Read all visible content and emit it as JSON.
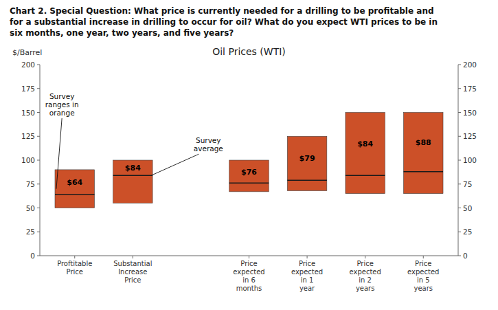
{
  "chart_data": {
    "type": "bar",
    "title": "Oil Prices (WTI)",
    "subtitle": "Chart 2. Special Question: What price is currently needed for a drilling to be profitable and\nfor a substantial increase in drilling to occur for oil? What do you expect WTI prices to be in\nsix months, one year, two years, and five years?",
    "y_label": "$/Barrel",
    "categories": [
      "Proftitable\nPrice",
      "Substantial\nIncrease\nPrice",
      null,
      "Price\nexpected\nin 6\nmonths",
      "Price\nexpected\nin 1\nyear",
      "Price\nexpected\nin 2\nyears",
      "Price\nexpected\nin 5\nyears"
    ],
    "lows": [
      50,
      55,
      null,
      67,
      68,
      65,
      65
    ],
    "highs": [
      90,
      100,
      null,
      100,
      125,
      150,
      150
    ],
    "values": [
      64,
      84,
      null,
      76,
      79,
      84,
      88
    ],
    "value_labels": [
      "$64",
      "$84",
      null,
      "$76",
      "$79",
      "$84",
      "$88"
    ],
    "data_labels": true,
    "color": "#CC5028",
    "annotations": [
      "Survey\nranges in\norange",
      "Survey\naverage"
    ],
    "ylim": [
      0,
      200
    ],
    "yticks": [
      0,
      25,
      50,
      75,
      100,
      125,
      150,
      175,
      200
    ],
    "y2lim": [
      0,
      200
    ],
    "y2ticks": [
      0,
      25,
      50,
      75,
      100,
      125,
      150,
      175,
      200
    ],
    "grid": false
  }
}
